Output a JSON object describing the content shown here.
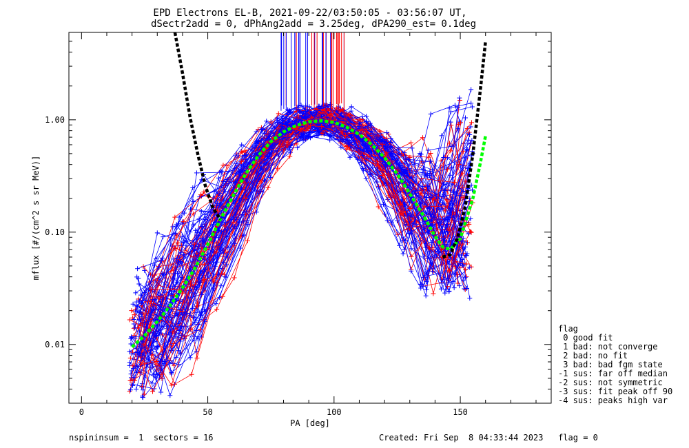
{
  "chart_data": {
    "type": "line",
    "title": "EPD Electrons EL-B, 2021-09-22/03:50:05 - 03:56:07 UT,",
    "subtitle": "dSectr2add = 0, dPhAng2add = 3.25deg, dPA290_est=   0.1deg",
    "xlabel": "PA [deg]",
    "ylabel": "mflux [#/(cm^2 s sr MeV)]",
    "xlim": [
      -5,
      186
    ],
    "ylim": [
      0.003,
      6.0
    ],
    "yscale": "log",
    "xticks": [
      0,
      50,
      100,
      150
    ],
    "xtick_labels": [
      "0",
      "50",
      "100",
      "150"
    ],
    "yticks": [
      0.01,
      0.1,
      1.0
    ],
    "ytick_labels": [
      "0.01",
      "0.10",
      "1.00"
    ],
    "grid": false,
    "colors": {
      "red_series": "#ff0000",
      "blue_series": "#0000ff",
      "fit_curve": "#00ff00",
      "envelope": "#000000"
    },
    "series": [
      {
        "color": "#00ff00",
        "style": "dashed",
        "x": [
          20,
          25,
          30,
          35,
          40,
          45,
          50,
          55,
          60,
          65,
          70,
          75,
          80,
          85,
          90,
          95,
          100,
          105,
          110,
          115,
          120,
          125,
          130,
          135,
          140,
          143,
          146,
          150,
          155,
          158,
          160
        ],
        "y": [
          0.0095,
          0.012,
          0.016,
          0.022,
          0.032,
          0.048,
          0.078,
          0.13,
          0.21,
          0.33,
          0.48,
          0.64,
          0.78,
          0.89,
          0.96,
          0.98,
          0.95,
          0.86,
          0.74,
          0.6,
          0.46,
          0.33,
          0.22,
          0.145,
          0.092,
          0.074,
          0.07,
          0.088,
          0.2,
          0.42,
          0.72
        ]
      },
      {
        "color": "#000000",
        "style": "dashed",
        "x": [
          37,
          40,
          43,
          46,
          49,
          52,
          55
        ],
        "y": [
          6.0,
          2.6,
          1.05,
          0.5,
          0.26,
          0.165,
          0.13
        ]
      },
      {
        "color": "#000000",
        "style": "dashed",
        "x": [
          143,
          146,
          149,
          152,
          155,
          158,
          160
        ],
        "y": [
          0.06,
          0.063,
          0.09,
          0.17,
          0.5,
          1.9,
          5.0
        ]
      }
    ],
    "scatter_note": "many individual red and blue measured spectra (+ markers joined by thin lines)"
  },
  "legend": {
    "title": "flag",
    "items": [
      " 0 good fit",
      " 1 bad: not converge",
      " 2 bad: no fit",
      " 3 bad: bad fgm state",
      "-1 sus: far off median",
      "-2 sus: not symmetric",
      "-3 sus: fit peak off 90",
      "-4 sus: peaks high var"
    ]
  },
  "footer": {
    "left": "nspininsum =  1  sectors = 16",
    "right": "Created: Fri Sep  8 04:33:44 2023   flag = 0"
  }
}
